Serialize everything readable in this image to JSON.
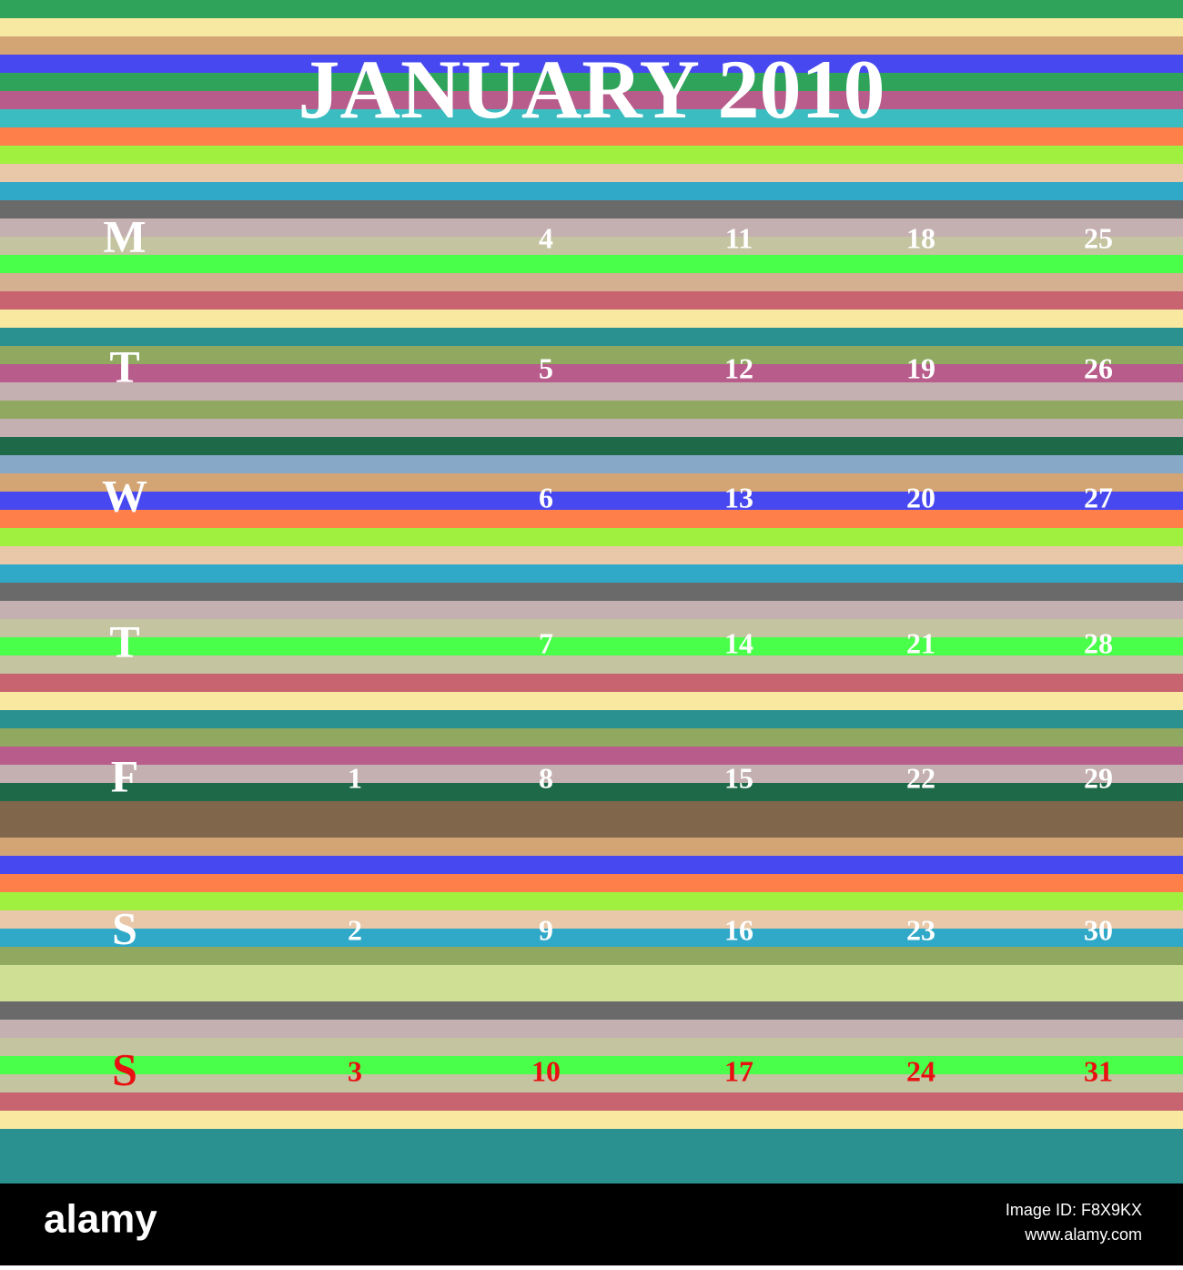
{
  "calendar": {
    "title": "JANUARY 2010",
    "rows": [
      {
        "day": "M",
        "dates": [
          "4",
          "11",
          "18",
          "25"
        ]
      },
      {
        "day": "T",
        "dates": [
          "5",
          "12",
          "19",
          "26"
        ]
      },
      {
        "day": "W",
        "dates": [
          "6",
          "13",
          "20",
          "27"
        ]
      },
      {
        "day": "T",
        "dates": [
          "7",
          "14",
          "21",
          "28"
        ]
      },
      {
        "day": "F",
        "dates": [
          "1",
          "8",
          "15",
          "22",
          "29"
        ]
      },
      {
        "day": "S",
        "dates": [
          "2",
          "9",
          "16",
          "23",
          "30"
        ]
      },
      {
        "day": "S",
        "dates": [
          "3",
          "10",
          "17",
          "24",
          "31"
        ]
      }
    ]
  },
  "footer": {
    "logo": "alamy",
    "image_id": "Image ID: F8X9KX",
    "url": "www.alamy.com"
  }
}
